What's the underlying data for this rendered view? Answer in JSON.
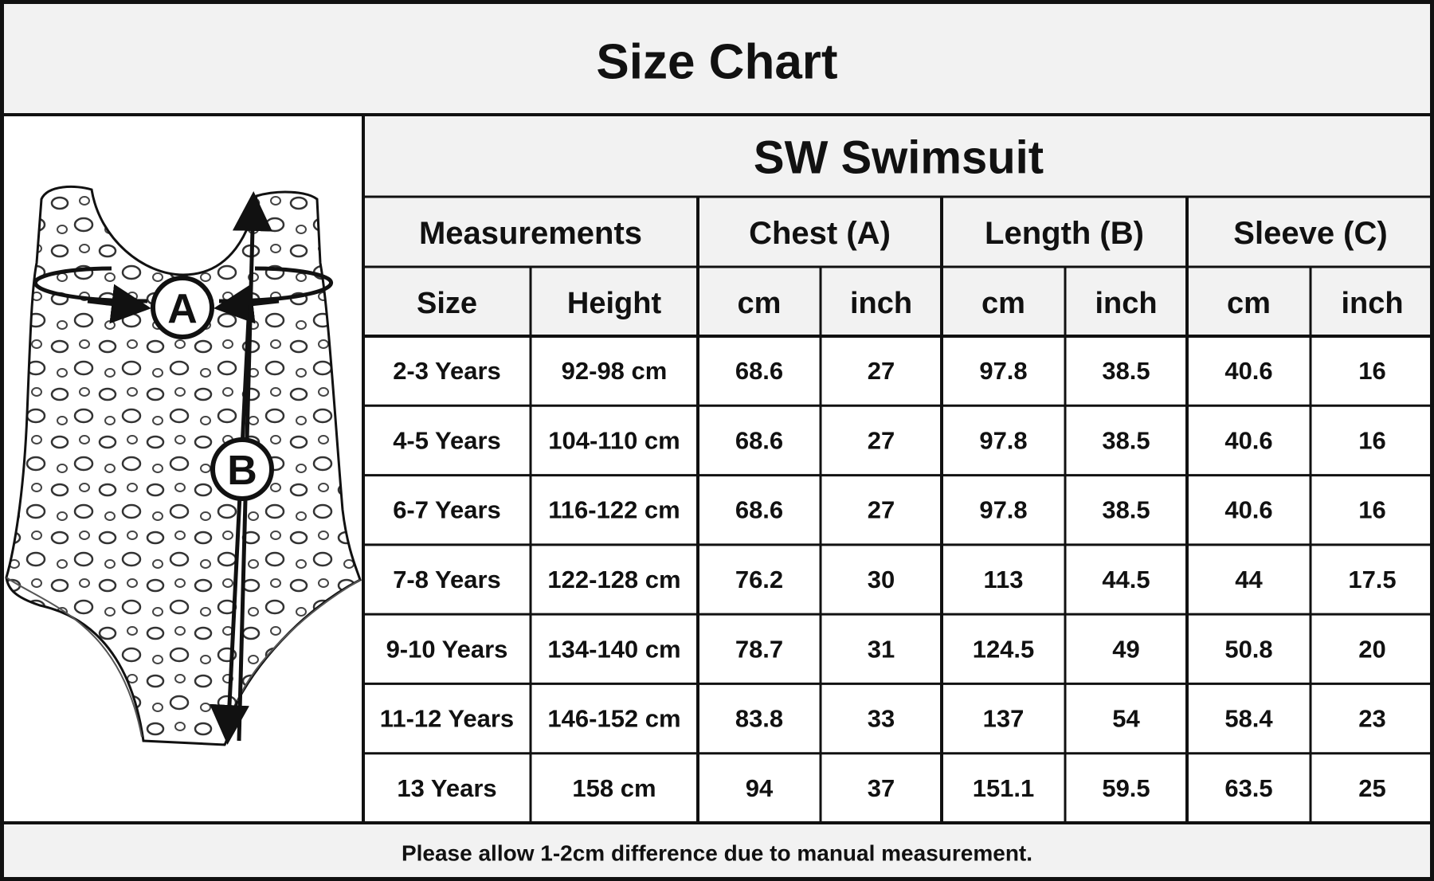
{
  "header": {
    "title": "Size Chart"
  },
  "table": {
    "title": "SW Swimsuit",
    "groups": [
      "Measurements",
      "Chest (A)",
      "Length (B)",
      "Sleeve (C)"
    ],
    "columns": [
      "Size",
      "Height",
      "cm",
      "inch",
      "cm",
      "inch",
      "cm",
      "inch"
    ],
    "rows": [
      [
        "2-3 Years",
        "92-98 cm",
        "68.6",
        "27",
        "97.8",
        "38.5",
        "40.6",
        "16"
      ],
      [
        "4-5 Years",
        "104-110 cm",
        "68.6",
        "27",
        "97.8",
        "38.5",
        "40.6",
        "16"
      ],
      [
        "6-7 Years",
        "116-122 cm",
        "68.6",
        "27",
        "97.8",
        "38.5",
        "40.6",
        "16"
      ],
      [
        "7-8 Years",
        "122-128 cm",
        "76.2",
        "30",
        "113",
        "44.5",
        "44",
        "17.5"
      ],
      [
        "9-10 Years",
        "134-140 cm",
        "78.7",
        "31",
        "124.5",
        "49",
        "50.8",
        "20"
      ],
      [
        "11-12 Years",
        "146-152 cm",
        "83.8",
        "33",
        "137",
        "54",
        "58.4",
        "23"
      ],
      [
        "13 Years",
        "158 cm",
        "94",
        "37",
        "151.1",
        "59.5",
        "63.5",
        "25"
      ]
    ]
  },
  "diagram": {
    "labels": [
      "A",
      "B"
    ]
  },
  "footer": {
    "note": "Please allow 1-2cm difference due to manual measurement."
  }
}
